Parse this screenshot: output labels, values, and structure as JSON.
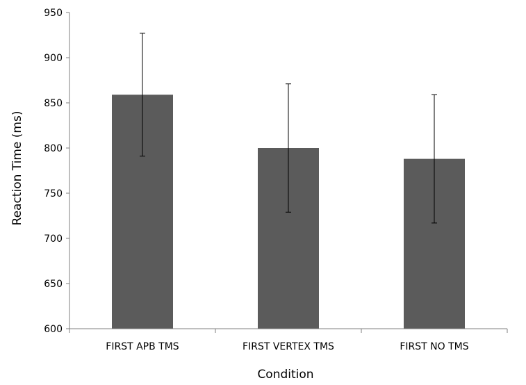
{
  "chart_data": {
    "type": "bar",
    "title": "",
    "xlabel": "Condition",
    "ylabel": "Reaction Time (ms)",
    "categories": [
      "FIRST APB TMS",
      "FIRST VERTEX TMS",
      "FIRST NO TMS"
    ],
    "values": [
      859,
      800,
      788
    ],
    "error": [
      68,
      71,
      71
    ],
    "ylim": [
      600,
      950
    ],
    "yticks": [
      "600",
      "650",
      "700",
      "750",
      "800",
      "850",
      "900",
      "950"
    ],
    "grid": false,
    "legend": "none",
    "colors": {
      "bar": "#5b5b5b",
      "axis": "#7f7f7f",
      "error_bar": "#000000"
    }
  }
}
